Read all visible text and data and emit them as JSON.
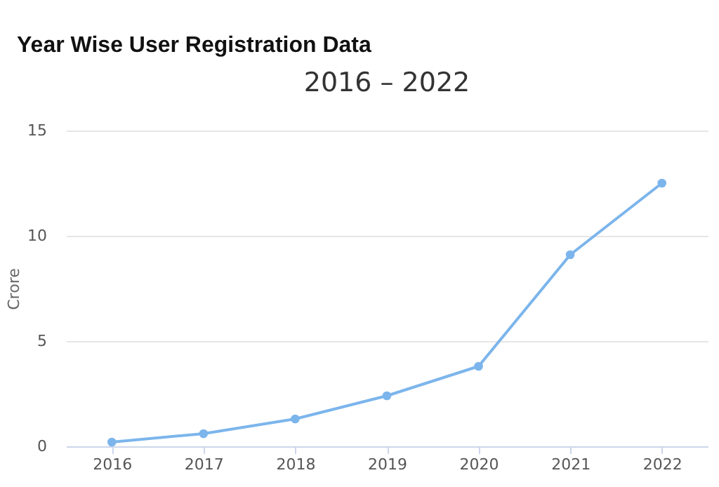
{
  "chart_data": {
    "type": "line",
    "title": "Year Wise User Registration Data",
    "subtitle": "2016 – 2022",
    "ylabel": "Crore",
    "categories": [
      "2016",
      "2017",
      "2018",
      "2019",
      "2020",
      "2021",
      "2022"
    ],
    "series": [
      {
        "color": "#7cb5ec",
        "values": [
          0.2,
          0.6,
          1.3,
          2.4,
          3.8,
          9.1,
          12.5
        ]
      }
    ],
    "ylim": [
      0,
      15
    ],
    "yticks": [
      0,
      5,
      10,
      15
    ],
    "grid": "y",
    "marker": "circle",
    "legend": false
  }
}
